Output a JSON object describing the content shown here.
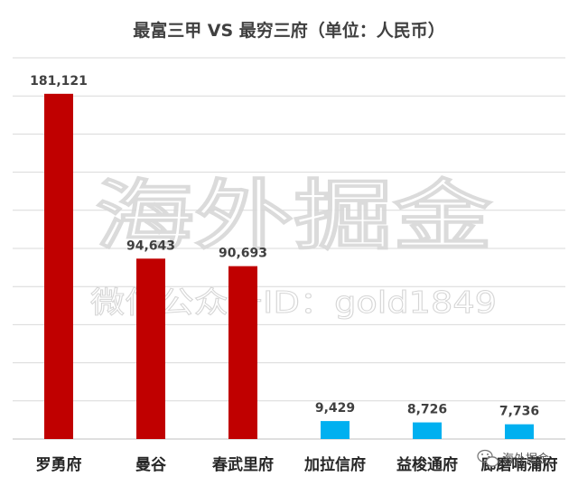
{
  "chart_data": {
    "type": "bar",
    "title": "最富三甲 VS 最穷三府（单位：人民币）",
    "categories": [
      "罗勇府",
      "曼谷",
      "春武里府",
      "加拉信府",
      "益梭通府",
      "廊磨喃蒲府"
    ],
    "values": [
      181121,
      94643,
      90693,
      9429,
      8726,
      7736
    ],
    "value_labels": [
      "181,121",
      "94,643",
      "90,693",
      "9,429",
      "8,726",
      "7,736"
    ],
    "ylim": [
      0,
      200000
    ],
    "grid": true,
    "legend": "none",
    "colors": [
      "#c00000",
      "#c00000",
      "#c00000",
      "#00b0f0",
      "#00b0f0",
      "#00b0f0"
    ]
  },
  "watermark": {
    "main": "海外掘金",
    "sub": "微信公众号ID：gold1849",
    "corner": "海外掘金"
  },
  "icons": {
    "wechat": "wechat-logo-icon"
  }
}
